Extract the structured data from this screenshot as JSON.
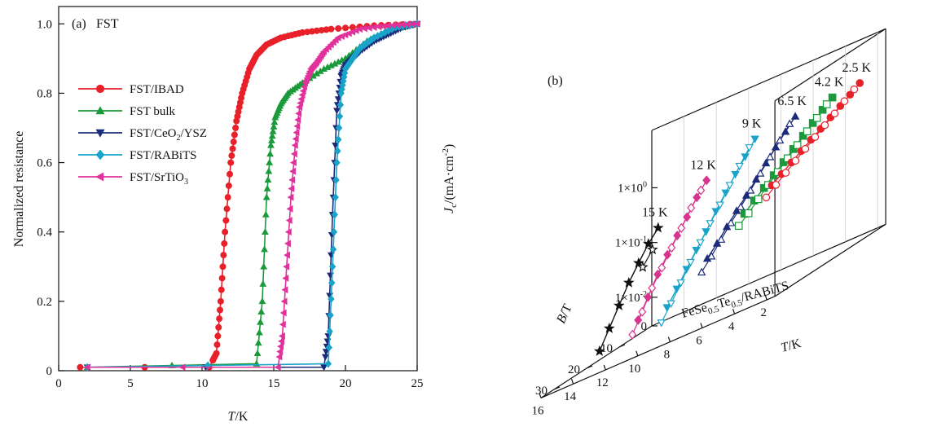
{
  "chart_data": [
    {
      "type": "line",
      "panel_label": "(a)",
      "title": "FST",
      "xlabel_italic": "T",
      "xlabel_rest": "/K",
      "ylabel": "Normalized resistance",
      "xlim": [
        0,
        25
      ],
      "ylim": [
        0,
        1.05
      ],
      "xticks": [
        "0",
        "5",
        "10",
        "15",
        "20",
        "25"
      ],
      "yticks": [
        "0",
        "0.2",
        "0.4",
        "0.6",
        "0.8",
        "1.0"
      ],
      "legend_position": "upper-left",
      "series": [
        {
          "name": "FST/IBAD",
          "label_parts": [
            "FST/IBAD"
          ],
          "color": "#e8202a",
          "marker": "circle",
          "x": [
            1.5,
            10.5,
            11.0,
            11.3,
            11.6,
            12.0,
            12.4,
            12.8,
            13.3,
            13.8,
            14.5,
            15.5,
            17.0,
            19.0,
            22.0,
            25.0
          ],
          "y": [
            0.01,
            0.01,
            0.05,
            0.2,
            0.4,
            0.6,
            0.72,
            0.8,
            0.87,
            0.91,
            0.94,
            0.96,
            0.975,
            0.985,
            0.995,
            1.0
          ]
        },
        {
          "name": "FST bulk",
          "label_parts": [
            "FST bulk"
          ],
          "color": "#1a9a3a",
          "marker": "triangle-up",
          "x": [
            2.0,
            13.8,
            14.2,
            14.5,
            14.8,
            15.1,
            15.5,
            16.0,
            17.0,
            18.5,
            20.0,
            21.5,
            23.0,
            25.0
          ],
          "y": [
            0.01,
            0.02,
            0.2,
            0.5,
            0.65,
            0.73,
            0.77,
            0.8,
            0.83,
            0.87,
            0.9,
            0.95,
            0.98,
            1.0
          ]
        },
        {
          "name": "FST/CeO2/YSZ",
          "label_parts": [
            "FST/CeO",
            "2",
            "/YSZ"
          ],
          "color": "#1c2a7a",
          "marker": "triangle-down",
          "x": [
            2.0,
            18.5,
            18.8,
            19.1,
            19.4,
            19.7,
            20.0,
            20.5,
            21.0,
            22.0,
            23.0,
            24.0,
            25.0
          ],
          "y": [
            0.01,
            0.01,
            0.1,
            0.45,
            0.75,
            0.85,
            0.88,
            0.9,
            0.92,
            0.95,
            0.97,
            0.99,
            1.0
          ]
        },
        {
          "name": "FST/RABiTS",
          "label_parts": [
            "FST/RABiTS"
          ],
          "color": "#1aa3c8",
          "marker": "diamond",
          "x": [
            2.0,
            18.8,
            19.1,
            19.4,
            19.7,
            20.0,
            20.5,
            21.0,
            22.0,
            23.5,
            25.0
          ],
          "y": [
            0.01,
            0.02,
            0.3,
            0.6,
            0.8,
            0.87,
            0.9,
            0.93,
            0.96,
            0.99,
            1.0
          ]
        },
        {
          "name": "FST/SrTiO3",
          "label_parts": [
            "FST/SrTiO",
            "3",
            ""
          ],
          "color": "#e0329a",
          "marker": "triangle-left",
          "x": [
            2.0,
            15.3,
            15.6,
            15.9,
            16.2,
            16.5,
            16.8,
            17.2,
            17.6,
            18.0,
            18.5,
            19.5,
            21.0,
            23.0,
            25.0
          ],
          "y": [
            0.01,
            0.01,
            0.1,
            0.3,
            0.5,
            0.65,
            0.76,
            0.83,
            0.87,
            0.89,
            0.92,
            0.96,
            0.985,
            0.995,
            1.0
          ]
        }
      ]
    },
    {
      "type": "scatter",
      "projection": "3d",
      "panel_label": "(b)",
      "annotation_parts": [
        "FeSe",
        "0.5",
        "Te",
        "0.5",
        "/RABiTS"
      ],
      "xlabel_italic": "T",
      "xlabel_rest": "/K",
      "ylabel_italic": "B",
      "ylabel_rest": "/T",
      "zlabel": "Jc/(mA·cm-2)",
      "zscale": "log",
      "T_ticks": [
        "16",
        "14",
        "12",
        "10",
        "8",
        "6",
        "4",
        "2"
      ],
      "B_ticks": [
        "10",
        "20",
        "30"
      ],
      "z_ticks": [
        "0",
        "1×10-2",
        "1×10-1",
        "1×100"
      ],
      "series": [
        {
          "name": "15 K",
          "label": "15 K",
          "T": 15,
          "color": "#111111",
          "marker": "star",
          "B": [
            3,
            6,
            9,
            12,
            15,
            18,
            21
          ],
          "Jc_filled": [
            0.18,
            0.12,
            0.07,
            0.04,
            0.02,
            0.01,
            0.005
          ],
          "Jc_open": [
            0.08,
            0.05
          ]
        },
        {
          "name": "12 K",
          "label": "12 K",
          "T": 12,
          "color": "#d8338f",
          "marker": "diamond",
          "B": [
            3,
            6,
            9,
            12,
            15,
            18,
            21,
            24
          ],
          "Jc_filled": [
            0.55,
            0.35,
            0.2,
            0.12,
            0.07,
            0.04,
            0.02,
            0.01
          ],
          "Jc_open": [
            0.4,
            0.25,
            0.14,
            0.08,
            0.045,
            0.025,
            0.012,
            0.006
          ]
        },
        {
          "name": "9 K",
          "label": "9 K",
          "T": 9,
          "color": "#1aa3c8",
          "marker": "triangle-down",
          "B": [
            3,
            6,
            9,
            12,
            15,
            18,
            21,
            24,
            27,
            30
          ],
          "Jc_filled": [
            1.3,
            0.8,
            0.5,
            0.3,
            0.18,
            0.1,
            0.06,
            0.035,
            0.02,
            0.012
          ],
          "Jc_open": [
            1.0,
            0.6,
            0.35,
            0.2,
            0.12,
            0.07,
            0.04,
            0.022,
            0.012,
            0.007
          ]
        },
        {
          "name": "6.5 K",
          "label": "6.5 K",
          "T": 6.5,
          "color": "#1c2a7a",
          "marker": "triangle-up",
          "B": [
            3,
            6,
            9,
            12,
            15,
            18,
            21,
            24,
            27,
            30
          ],
          "Jc_filled": [
            1.6,
            1.1,
            0.75,
            0.5,
            0.33,
            0.22,
            0.15,
            0.1,
            0.065,
            0.045
          ],
          "Jc_open": [
            1.3,
            0.85,
            0.55,
            0.36,
            0.23,
            0.15,
            0.1,
            0.065,
            0.042,
            0.028
          ]
        },
        {
          "name": "4.2 K",
          "label": "4.2 K",
          "T": 4.2,
          "color": "#1a9a3a",
          "marker": "square",
          "B": [
            3,
            6,
            9,
            12,
            15,
            18,
            21,
            24,
            27,
            30
          ],
          "Jc_filled": [
            1.8,
            1.4,
            1.05,
            0.8,
            0.6,
            0.45,
            0.34,
            0.26,
            0.2,
            0.15
          ],
          "Jc_open": [
            1.5,
            1.1,
            0.82,
            0.6,
            0.45,
            0.33,
            0.25,
            0.18,
            0.13,
            0.1
          ]
        },
        {
          "name": "2.5 K",
          "label": "2.5 K",
          "T": 2.5,
          "color": "#e8202a",
          "marker": "circle",
          "B": [
            3,
            6,
            9,
            12,
            15,
            18,
            21,
            24,
            27,
            30
          ],
          "Jc_filled": [
            2.0,
            1.6,
            1.3,
            1.05,
            0.85,
            0.7,
            0.57,
            0.46,
            0.37,
            0.3
          ],
          "Jc_open": [
            1.7,
            1.35,
            1.05,
            0.84,
            0.67,
            0.53,
            0.42,
            0.33,
            0.26,
            0.2
          ]
        }
      ]
    }
  ]
}
